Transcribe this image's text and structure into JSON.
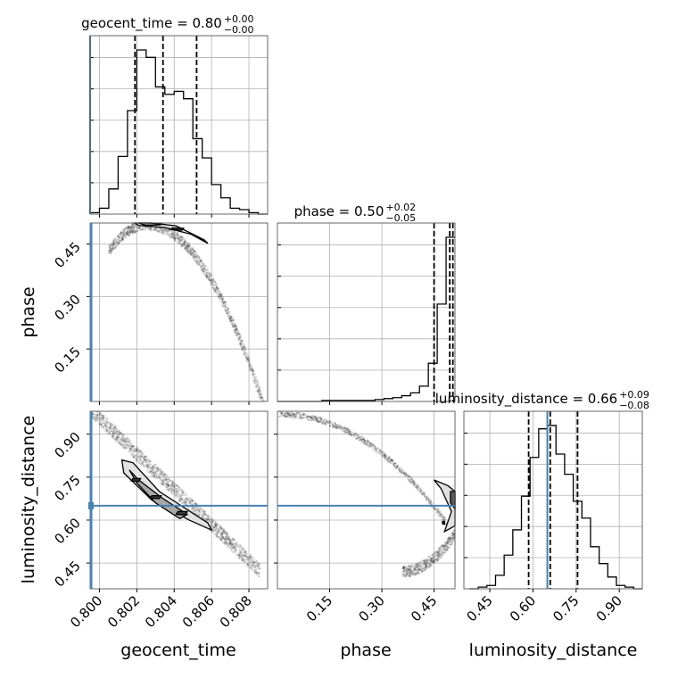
{
  "chart_data": {
    "type": "corner",
    "parameters": [
      "geocent_time",
      "phase",
      "luminosity_distance"
    ],
    "truth": {
      "geocent_time": 0.7995,
      "luminosity_distance": 0.65,
      "color": "#4682b4"
    },
    "titles": [
      {
        "param": "geocent_time",
        "text": "geocent_time = 0.80",
        "plus": "+0.00",
        "minus": "−0.00"
      },
      {
        "param": "phase",
        "text": "phase = 0.50",
        "plus": "+0.02",
        "minus": "−0.05"
      },
      {
        "param": "luminosity_distance",
        "text": "luminosity_distance = 0.66",
        "plus": "+0.09",
        "minus": "−0.08"
      }
    ],
    "axes": {
      "geocent_time": {
        "lim": [
          0.7995,
          0.809
        ],
        "ticks": [
          0.8,
          0.802,
          0.804,
          0.806,
          0.808
        ],
        "tick_labels": [
          "0.800",
          "0.802",
          "0.804",
          "0.806",
          "0.808"
        ]
      },
      "phase": {
        "lim": [
          0.0,
          0.51
        ],
        "ticks": [
          0.15,
          0.3,
          0.45
        ],
        "tick_labels": [
          "0.15",
          "0.30",
          "0.45"
        ]
      },
      "luminosity_distance": {
        "lim": [
          0.36,
          0.98
        ],
        "ticks": [
          0.45,
          0.6,
          0.75,
          0.9
        ],
        "tick_labels": [
          "0.45",
          "0.60",
          "0.75",
          "0.90"
        ]
      }
    },
    "axis_labels": {
      "x": [
        "geocent_time",
        "phase",
        "luminosity_distance"
      ],
      "y": [
        "phase",
        "luminosity_distance"
      ]
    },
    "histograms": [
      {
        "param": "geocent_time",
        "edges": [
          0.7995,
          0.8,
          0.8005,
          0.801,
          0.8015,
          0.802,
          0.8025,
          0.803,
          0.8035,
          0.804,
          0.8045,
          0.805,
          0.8055,
          0.806,
          0.8065,
          0.807,
          0.8075,
          0.808,
          0.8085,
          0.809
        ],
        "counts": [
          1,
          4,
          17,
          39,
          70,
          111,
          106,
          86,
          81,
          83,
          78,
          51,
          38,
          20,
          11,
          4,
          3,
          1,
          0
        ],
        "quantiles": [
          0.8019,
          0.8034,
          0.8052
        ]
      },
      {
        "param": "phase",
        "edges": [
          0.0,
          0.0255,
          0.051,
          0.0765,
          0.102,
          0.1275,
          0.153,
          0.1785,
          0.204,
          0.2295,
          0.255,
          0.2805,
          0.306,
          0.3315,
          0.357,
          0.3825,
          0.408,
          0.4335,
          0.459,
          0.4845,
          0.51
        ],
        "counts": [
          0,
          0,
          0,
          0,
          0,
          1,
          1,
          1,
          1,
          1,
          1,
          2,
          3,
          4,
          6,
          9,
          16,
          40,
          102,
          172
        ],
        "quantiles": [
          0.45,
          0.495,
          0.504
        ]
      },
      {
        "param": "luminosity_distance",
        "edges": [
          0.38,
          0.41,
          0.44,
          0.47,
          0.5,
          0.53,
          0.56,
          0.59,
          0.62,
          0.65,
          0.68,
          0.71,
          0.74,
          0.77,
          0.8,
          0.83,
          0.86,
          0.89,
          0.92,
          0.95,
          0.98
        ],
        "counts": [
          0,
          1,
          2,
          8,
          20,
          35,
          55,
          78,
          95,
          97,
          80,
          68,
          52,
          42,
          25,
          15,
          7,
          2,
          1,
          0
        ],
        "quantiles": [
          0.585,
          0.66,
          0.755
        ]
      }
    ],
    "grid": true
  }
}
